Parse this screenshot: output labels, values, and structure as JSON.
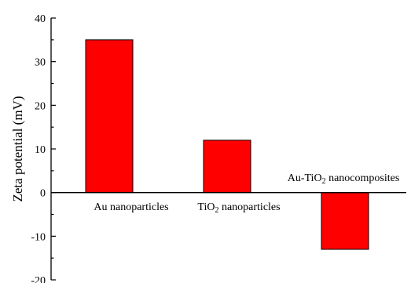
{
  "chart_data": {
    "type": "bar",
    "title": "",
    "xlabel": "",
    "ylabel": "Zeta potential (mV)",
    "ylim": [
      -20,
      40
    ],
    "yticks": [
      "40",
      "30",
      "20",
      "10",
      "0",
      "-10",
      "-20"
    ],
    "ytick_values": [
      40,
      30,
      20,
      10,
      0,
      -10,
      -20
    ],
    "grid": false,
    "legend": "none",
    "bar_color": "#ff0000",
    "categories": [
      {
        "pre": "Au nanoparticles",
        "sub": "",
        "post": ""
      },
      {
        "pre": "TiO",
        "sub": "2",
        "post": " nanoparticles"
      },
      {
        "pre": "Au-TiO",
        "sub": "2",
        "post": " nanocomposites"
      }
    ],
    "values": [
      35,
      12,
      -13
    ]
  }
}
